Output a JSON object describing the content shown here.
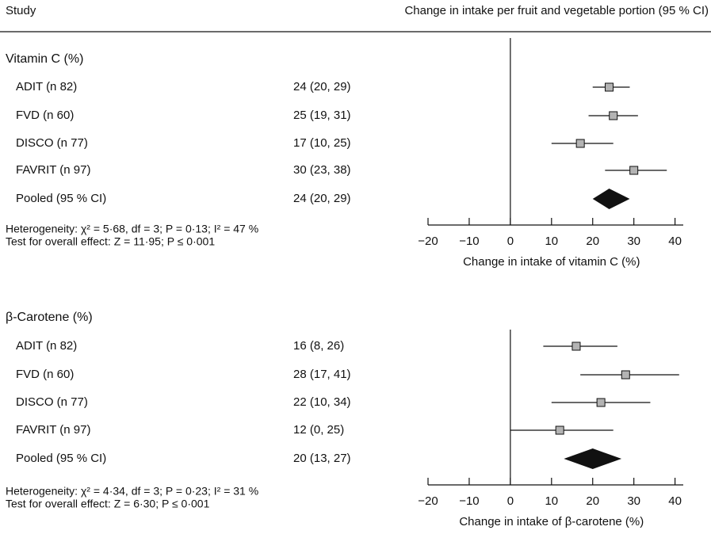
{
  "header": {
    "study": "Study",
    "effect": "Change in intake per fruit and vegetable portion (95 % CI)"
  },
  "chart_data": [
    {
      "type": "forest",
      "title": "Vitamin C (%)",
      "categories": [
        "ADIT (n 82)",
        "FVD (n 60)",
        "DISCO (n 77)",
        "FAVRIT (n 97)"
      ],
      "values": [
        24,
        25,
        17,
        30
      ],
      "lower": [
        20,
        19,
        10,
        23
      ],
      "upper": [
        29,
        31,
        25,
        38
      ],
      "value_labels": [
        "24 (20, 29)",
        "25 (19, 31)",
        "17 (10, 25)",
        "30 (23, 38)"
      ],
      "pooled": {
        "label": "Pooled (95 % CI)",
        "value": 24,
        "lower": 20,
        "upper": 29,
        "value_label": "24 (20, 29)"
      },
      "heterogeneity": "Heterogeneity: χ² = 5·68, df = 3; P = 0·13; I² = 47 %",
      "overall_test": "Test for overall effect: Z = 11·95; P ≤ 0·001",
      "x_label": "Change in intake of vitamin C (%)",
      "xlim": [
        -20,
        42
      ],
      "xticks": [
        {
          "value": -20,
          "label": "−20"
        },
        {
          "value": -10,
          "label": "−10"
        },
        0,
        10,
        20,
        30,
        40
      ],
      "reference_line": 0,
      "box_color": "#b3b3b3",
      "diamond_color": "#111111"
    },
    {
      "type": "forest",
      "title": "β-Carotene (%)",
      "categories": [
        "ADIT (n 82)",
        "FVD (n 60)",
        "DISCO (n 77)",
        "FAVRIT (n 97)"
      ],
      "values": [
        16,
        28,
        22,
        12
      ],
      "lower": [
        8,
        17,
        10,
        0
      ],
      "upper": [
        26,
        41,
        34,
        25
      ],
      "value_labels": [
        "16 (8, 26)",
        "28 (17, 41)",
        "22 (10, 34)",
        "12 (0, 25)"
      ],
      "pooled": {
        "label": "Pooled (95 % CI)",
        "value": 20,
        "lower": 13,
        "upper": 27,
        "value_label": "20 (13, 27)"
      },
      "heterogeneity": "Heterogeneity: χ² = 4·34, df = 3; P = 0·23; I² = 31 %",
      "overall_test": "Test for overall effect: Z = 6·30; P ≤ 0·001",
      "x_label": "Change in intake of β-carotene (%)",
      "xlim": [
        -20,
        42
      ],
      "xticks": [
        {
          "value": -20,
          "label": "−20"
        },
        {
          "value": -10,
          "label": "−10"
        },
        0,
        10,
        20,
        30,
        40
      ],
      "reference_line": 0,
      "box_color": "#b3b3b3",
      "diamond_color": "#111111"
    }
  ]
}
